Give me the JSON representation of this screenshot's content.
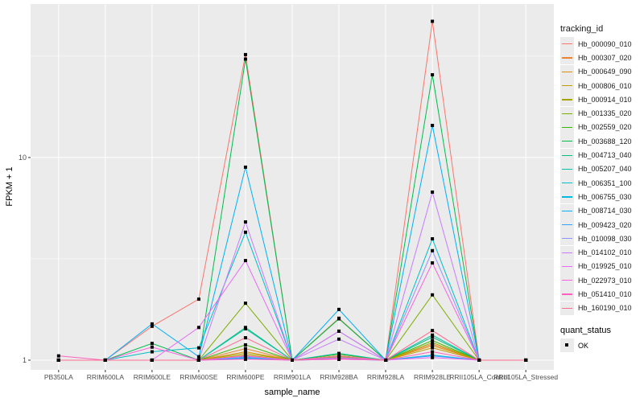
{
  "chart_data": {
    "type": "line",
    "xlabel": "sample_name",
    "ylabel": "FPKM + 1",
    "y_scale": "log10",
    "ylim": [
      0.896,
      57.2
    ],
    "y_ticks": [
      1,
      10
    ],
    "y_tick_labels": [
      "1",
      "10"
    ],
    "grid": true,
    "legend_position": "right",
    "categories": [
      "PB350LA",
      "RRIM600LA",
      "RRIM600LE",
      "RRIM600SE",
      "RRIM600PE",
      "RRIM901LA",
      "RRIM928BA",
      "RRIM928LA",
      "RRIM928LE",
      "RRII105LA_Control",
      "RRII105LA_Stressed"
    ],
    "legend_title": "tracking_id",
    "series": [
      {
        "name": "Hb_000090_010",
        "color": "#F8766D",
        "values": [
          1,
          1,
          1.47,
          2.0,
          32.2,
          1,
          1.61,
          1,
          47,
          1,
          1
        ]
      },
      {
        "name": "Hb_000307_020",
        "color": "#EA8331",
        "values": [
          1,
          1,
          1,
          1,
          1.14,
          1,
          1.05,
          1,
          1.2,
          1,
          1
        ]
      },
      {
        "name": "Hb_000649_090",
        "color": "#D89000",
        "values": [
          1,
          1,
          1,
          1,
          1.1,
          1,
          1.04,
          1,
          1.18,
          1,
          1
        ]
      },
      {
        "name": "Hb_000806_010",
        "color": "#C09B00",
        "values": [
          1,
          1,
          1,
          1,
          1.06,
          1,
          1.03,
          1,
          1.15,
          1,
          1
        ]
      },
      {
        "name": "Hb_000914_010",
        "color": "#A3A500",
        "values": [
          1,
          1,
          1,
          1,
          1.08,
          1,
          1.05,
          1,
          1.22,
          1,
          1
        ]
      },
      {
        "name": "Hb_001335_020",
        "color": "#7CAE00",
        "values": [
          1,
          1,
          1,
          1,
          1.91,
          1,
          1.6,
          1,
          2.1,
          1,
          1
        ]
      },
      {
        "name": "Hb_002559_020",
        "color": "#39B600",
        "values": [
          1,
          1,
          1,
          1,
          1.19,
          1,
          1.07,
          1,
          1.25,
          1,
          1
        ]
      },
      {
        "name": "Hb_003688_120",
        "color": "#00BB4E",
        "values": [
          1,
          1,
          1.21,
          1,
          30.6,
          1,
          1.6,
          1,
          25.6,
          1,
          1
        ]
      },
      {
        "name": "Hb_004713_040",
        "color": "#00BF7D",
        "values": [
          1,
          1,
          1,
          1,
          1.45,
          1,
          1.05,
          1,
          1.3,
          1,
          1
        ]
      },
      {
        "name": "Hb_005207_040",
        "color": "#00C1A3",
        "values": [
          1,
          1,
          1,
          1,
          1.43,
          1,
          1.08,
          1,
          1.33,
          1,
          1
        ]
      },
      {
        "name": "Hb_006351_100",
        "color": "#00BFC4",
        "values": [
          1,
          1,
          1.1,
          1.15,
          4.28,
          1,
          1.39,
          1,
          3.97,
          1,
          1
        ]
      },
      {
        "name": "Hb_006755_030",
        "color": "#00BAE0",
        "values": [
          1,
          1,
          1,
          1,
          1.03,
          1,
          1.02,
          1,
          1.06,
          1,
          1
        ]
      },
      {
        "name": "Hb_008714_030",
        "color": "#00B0F6",
        "values": [
          1,
          1,
          1.51,
          1.04,
          8.96,
          1,
          1.78,
          1,
          14.4,
          1,
          1
        ]
      },
      {
        "name": "Hb_009423_020",
        "color": "#35A2FF",
        "values": [
          1,
          1,
          1,
          1,
          1.02,
          1,
          1.01,
          1,
          1.05,
          1,
          1
        ]
      },
      {
        "name": "Hb_010098_030",
        "color": "#9590FF",
        "values": [
          1,
          1,
          1,
          1,
          1.04,
          1,
          1.03,
          1,
          3.47,
          1,
          1
        ]
      },
      {
        "name": "Hb_014102_010",
        "color": "#C77CFF",
        "values": [
          1,
          1,
          1,
          1,
          4.81,
          1,
          1.27,
          1,
          6.75,
          1,
          1
        ]
      },
      {
        "name": "Hb_019925_010",
        "color": "#E76BF3",
        "values": [
          1,
          1,
          1,
          1.45,
          3.1,
          1,
          1.39,
          1,
          1.03,
          1,
          1
        ]
      },
      {
        "name": "Hb_022973_010",
        "color": "#FA62DB",
        "values": [
          1,
          1,
          1.16,
          1,
          1.05,
          1,
          1.02,
          1,
          3.02,
          1,
          1
        ]
      },
      {
        "name": "Hb_051410_010",
        "color": "#FF62BC",
        "values": [
          1.05,
          1,
          1,
          1,
          1.01,
          1,
          1.01,
          1,
          1.1,
          1,
          1
        ]
      },
      {
        "name": "Hb_160190_010",
        "color": "#FF6C91",
        "values": [
          1,
          1,
          1,
          1,
          1.29,
          1,
          1.05,
          1,
          1.4,
          1,
          1
        ]
      }
    ],
    "shape_legend_title": "quant_status",
    "shape_legend_items": [
      "OK"
    ]
  }
}
